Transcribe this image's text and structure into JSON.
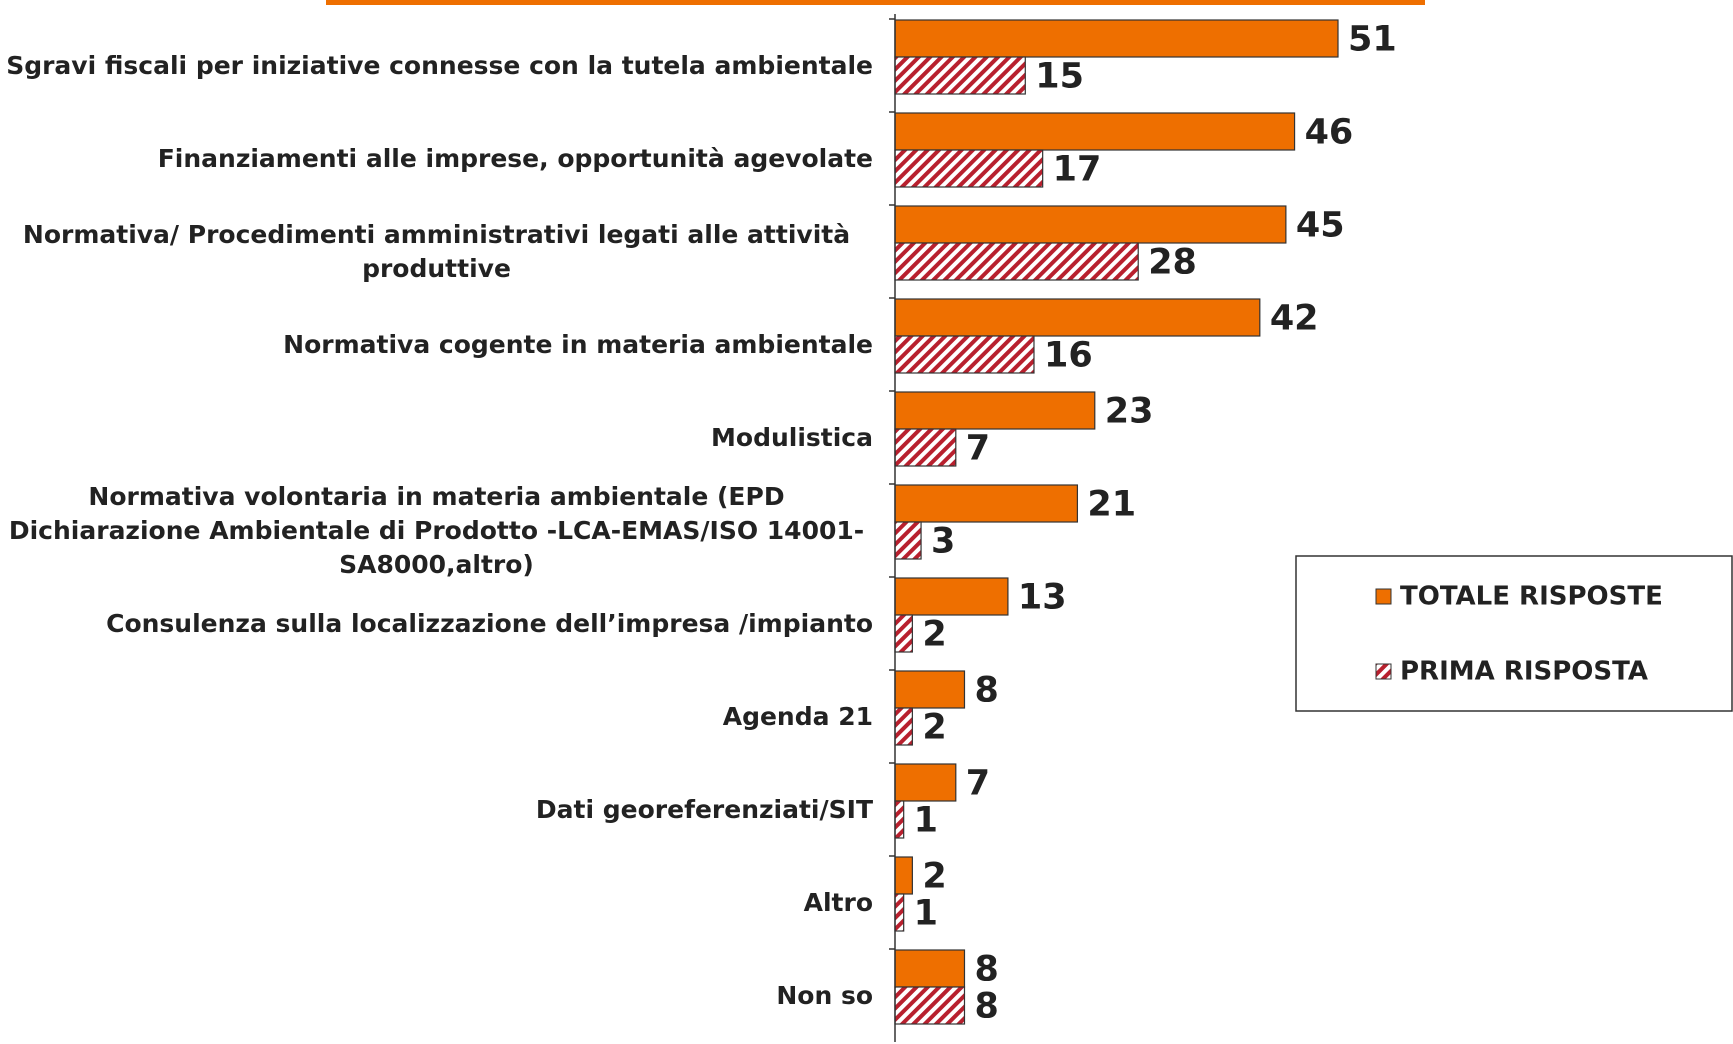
{
  "chart_data": {
    "type": "bar",
    "orientation": "horizontal",
    "categories": [
      "Sgravi fiscali per iniziative connesse con la tutela ambientale",
      "Finanziamenti alle imprese, opportunità agevolate",
      "Normativa/ Procedimenti amministrativi legati alle attività produttive",
      "Normativa cogente in materia ambientale",
      "Modulistica",
      "Normativa volontaria in materia ambientale (EPD Dichiarazione Ambientale di Prodotto -LCA-EMAS/ISO 14001-SA8000,altro)",
      "Consulenza sulla localizzazione dell’impresa /impianto",
      "Agenda 21",
      "Dati georeferenziati/SIT",
      "Altro",
      "Non so"
    ],
    "series": [
      {
        "name": "TOTALE RISPOSTE",
        "color": "#ee6f00",
        "pattern": "solid",
        "values": [
          51,
          46,
          45,
          42,
          23,
          21,
          13,
          8,
          7,
          2,
          8
        ]
      },
      {
        "name": "PRIMA RISPOSTA",
        "color": "#b8202e",
        "pattern": "hatch",
        "values": [
          15,
          17,
          28,
          16,
          7,
          3,
          2,
          2,
          1,
          1,
          8
        ]
      }
    ],
    "legend": "right"
  }
}
